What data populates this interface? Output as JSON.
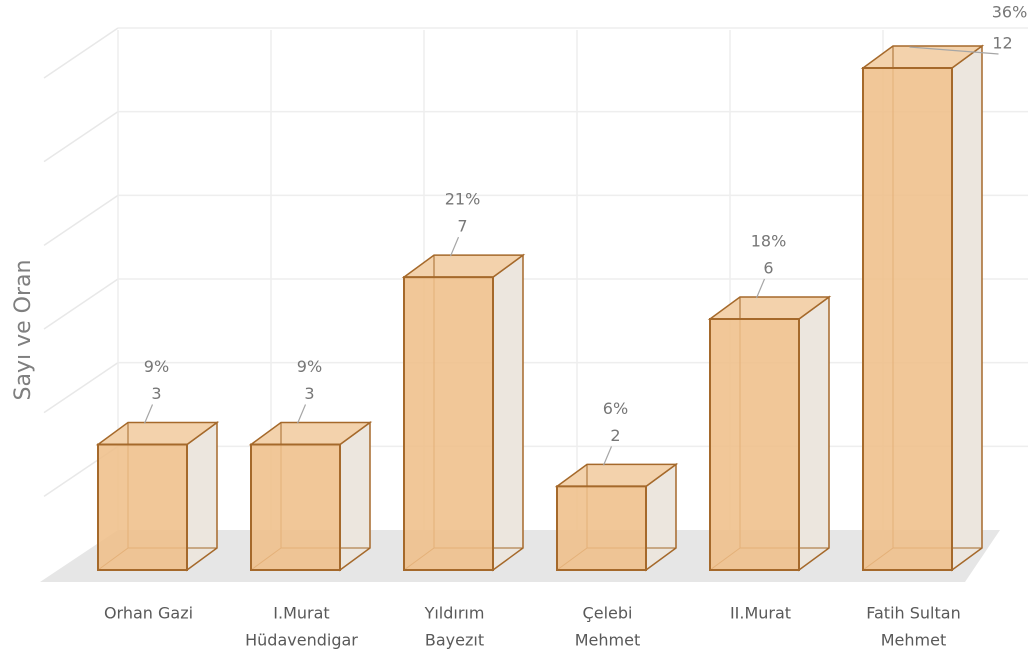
{
  "chart_data": {
    "type": "bar3d",
    "y_axis_label": "Sayı ve Oran",
    "categories": [
      [
        "Orhan Gazi"
      ],
      [
        "I.Murat",
        "Hüdavendigar"
      ],
      [
        "Yıldırım",
        "Bayezıt"
      ],
      [
        "Çelebi",
        "Mehmet"
      ],
      [
        "II.Murat"
      ],
      [
        "Fatih Sultan",
        "Mehmet"
      ]
    ],
    "values": [
      3,
      3,
      7,
      2,
      6,
      12
    ],
    "percent_labels": [
      "9%",
      "9%",
      "21%",
      "6%",
      "18%",
      "36%"
    ],
    "color": "#eebd86",
    "edge_color": "#a5692b",
    "ylim": [
      0,
      13
    ],
    "yticks": [
      0,
      2,
      4,
      6,
      8,
      10,
      12
    ],
    "grid": true
  }
}
